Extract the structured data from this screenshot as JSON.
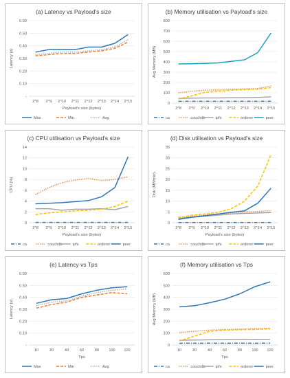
{
  "chart_data": [
    {
      "type": "line",
      "title": "(a) Latency vs Payload's size",
      "xlabel": "Payload's size (bytes)",
      "ylabel": "Latency (s)",
      "categories": [
        "2^8",
        "2^9",
        "2^10",
        "2^11",
        "2^12",
        "2^13",
        "2^14",
        "2^15"
      ],
      "ylim": [
        0,
        0.6
      ],
      "yticks": [
        "-",
        "0.10",
        "0.20",
        "0.30",
        "0.40",
        "0.50",
        "0.60"
      ],
      "grid": true,
      "legend": "bottom",
      "series": [
        {
          "name": "Max",
          "values": [
            0.35,
            0.37,
            0.37,
            0.37,
            0.39,
            0.39,
            0.42,
            0.49
          ],
          "color": "#2e75b6",
          "dash": "solid"
        },
        {
          "name": "Min",
          "values": [
            0.32,
            0.33,
            0.34,
            0.34,
            0.35,
            0.36,
            0.38,
            0.43
          ],
          "color": "#ed7d31",
          "dash": "dash"
        },
        {
          "name": "Avg",
          "values": [
            0.33,
            0.34,
            0.35,
            0.35,
            0.36,
            0.37,
            0.39,
            0.45
          ],
          "color": "#a5a5a5",
          "dash": "dot"
        }
      ]
    },
    {
      "type": "line",
      "title": "(b) Memory utilisation vs Payload's size",
      "xlabel": "",
      "ylabel": "Avg Memory (MB)",
      "categories": [
        "2^8",
        "2^9",
        "2^10",
        "2^11",
        "2^12",
        "2^13",
        "2^14",
        "2^15"
      ],
      "ylim": [
        0,
        800
      ],
      "yticks": [
        "0",
        "100",
        "200",
        "300",
        "400",
        "500",
        "600",
        "700",
        "800"
      ],
      "grid": true,
      "legend": "bottom",
      "series": [
        {
          "name": "ca",
          "values": [
            17,
            17,
            17,
            17,
            17,
            17,
            17,
            17
          ],
          "color": "#2e75b6",
          "dash": "dashdot"
        },
        {
          "name": "couchdb",
          "values": [
            100,
            115,
            125,
            128,
            133,
            138,
            142,
            165
          ],
          "color": "#ed7d31",
          "dash": "dot"
        },
        {
          "name": "ipfs",
          "values": [
            45,
            48,
            50,
            50,
            52,
            52,
            55,
            60
          ],
          "color": "#a5a5a5",
          "dash": "solid"
        },
        {
          "name": "orderer",
          "values": [
            40,
            70,
            105,
            115,
            125,
            130,
            135,
            150
          ],
          "color": "#ffc000",
          "dash": "dash"
        },
        {
          "name": "peer",
          "values": [
            380,
            382,
            385,
            390,
            405,
            420,
            490,
            680
          ],
          "color": "#17a2b8",
          "dash": "solid"
        }
      ]
    },
    {
      "type": "line",
      "title": "(c) CPU utilisation vs Payload's size",
      "xlabel": "Payload's size (bytes)",
      "ylabel": "CPU (%)",
      "categories": [
        "2^8",
        "2^9",
        "2^10",
        "2^11",
        "2^12",
        "2^13",
        "2^14",
        "2^15"
      ],
      "ylim": [
        0,
        14
      ],
      "yticks": [
        "0",
        "2",
        "4",
        "6",
        "8",
        "10",
        "12",
        "14"
      ],
      "grid": true,
      "legend": "bottom",
      "series": [
        {
          "name": "ca",
          "values": [
            0.05,
            0.05,
            0.05,
            0.05,
            0.05,
            0.05,
            0.05,
            0.05
          ],
          "color": "#2e75b6",
          "dash": "dashdot"
        },
        {
          "name": "couchdb",
          "values": [
            5.2,
            6.5,
            7.4,
            7.9,
            8.2,
            7.8,
            8.0,
            8.5
          ],
          "color": "#ed7d31",
          "dash": "dot"
        },
        {
          "name": "ipfs",
          "values": [
            2.6,
            2.6,
            2.3,
            2.5,
            2.5,
            2.6,
            2.4,
            3.0
          ],
          "color": "#a5a5a5",
          "dash": "solid"
        },
        {
          "name": "orderer",
          "values": [
            1.5,
            1.8,
            2.0,
            2.2,
            2.3,
            2.5,
            3.0,
            4.0
          ],
          "color": "#ffc000",
          "dash": "dash"
        },
        {
          "name": "peer",
          "values": [
            3.5,
            3.6,
            3.7,
            3.9,
            4.1,
            4.8,
            6.5,
            12.2
          ],
          "color": "#2e75b6",
          "dash": "solid"
        }
      ]
    },
    {
      "type": "line",
      "title": "(d) Disk utilisation vs Payload's size",
      "xlabel": "Payload's size (bytes)",
      "ylabel": "Disk (MB/min)",
      "categories": [
        "2^8",
        "2^9",
        "2^10",
        "2^11",
        "2^12",
        "2^13",
        "2^14",
        "2^15"
      ],
      "ylim": [
        0,
        35
      ],
      "yticks": [
        "0",
        "5",
        "10",
        "15",
        "20",
        "25",
        "30",
        "35"
      ],
      "grid": true,
      "legend": "bottom",
      "series": [
        {
          "name": "ca",
          "values": [
            0.1,
            0.1,
            0.1,
            0.1,
            0.1,
            0.1,
            0.1,
            0.1
          ],
          "color": "#2e75b6",
          "dash": "dashdot"
        },
        {
          "name": "couchdb",
          "values": [
            2.5,
            3.0,
            3.5,
            4.0,
            4.5,
            5.0,
            5.2,
            5.6
          ],
          "color": "#ed7d31",
          "dash": "dot"
        },
        {
          "name": "ipfs",
          "values": [
            2.0,
            2.5,
            3.0,
            3.5,
            4.0,
            4.3,
            4.5,
            4.7
          ],
          "color": "#a5a5a5",
          "dash": "solid"
        },
        {
          "name": "orderer",
          "values": [
            2.2,
            3.5,
            4.0,
            4.8,
            6.5,
            10.0,
            17.0,
            31.5
          ],
          "color": "#ffc000",
          "dash": "dash"
        },
        {
          "name": "peer",
          "values": [
            1.5,
            2.5,
            3.2,
            4.0,
            4.8,
            5.5,
            9.0,
            16.0
          ],
          "color": "#2e75b6",
          "dash": "solid"
        }
      ]
    },
    {
      "type": "line",
      "title": "(e) Latency vs Tps",
      "xlabel": "Tps",
      "ylabel": "Latency (s)",
      "categories": [
        "10",
        "20",
        "40",
        "60",
        "80",
        "100",
        "120"
      ],
      "ylim": [
        0,
        0.6
      ],
      "yticks": [
        "-",
        "0.10",
        "0.20",
        "0.30",
        "0.40",
        "0.50",
        "0.60"
      ],
      "grid": true,
      "legend": "bottom",
      "series": [
        {
          "name": "Max",
          "values": [
            0.35,
            0.38,
            0.39,
            0.43,
            0.46,
            0.48,
            0.49
          ],
          "color": "#2e75b6",
          "dash": "solid"
        },
        {
          "name": "Min",
          "values": [
            0.31,
            0.34,
            0.36,
            0.4,
            0.42,
            0.44,
            0.43
          ],
          "color": "#ed7d31",
          "dash": "dash"
        },
        {
          "name": "Avg",
          "values": [
            0.33,
            0.36,
            0.37,
            0.41,
            0.44,
            0.46,
            0.47
          ],
          "color": "#a5a5a5",
          "dash": "dot"
        }
      ]
    },
    {
      "type": "line",
      "title": "(f) Memory utilisation vs Tps",
      "xlabel": "Tps",
      "ylabel": "Avg Memory (MB)",
      "categories": [
        "10",
        "20",
        "40",
        "60",
        "80",
        "100",
        "120"
      ],
      "ylim": [
        0,
        600
      ],
      "yticks": [
        "0",
        "100",
        "200",
        "300",
        "400",
        "500",
        "600"
      ],
      "grid": true,
      "legend": "bottom",
      "series": [
        {
          "name": "ca",
          "values": [
            15,
            15,
            15,
            15,
            15,
            15,
            15
          ],
          "color": "#2e75b6",
          "dash": "dashdot"
        },
        {
          "name": "couchdb",
          "values": [
            105,
            115,
            125,
            130,
            133,
            138,
            140
          ],
          "color": "#ed7d31",
          "dash": "dot"
        },
        {
          "name": "ipfs",
          "values": [
            40,
            42,
            44,
            45,
            46,
            47,
            48
          ],
          "color": "#a5a5a5",
          "dash": "solid"
        },
        {
          "name": "orderer",
          "values": [
            35,
            75,
            115,
            125,
            128,
            130,
            135
          ],
          "color": "#ffc000",
          "dash": "dash"
        },
        {
          "name": "peer",
          "values": [
            320,
            330,
            355,
            385,
            430,
            490,
            530
          ],
          "color": "#2e75b6",
          "dash": "solid"
        }
      ]
    }
  ]
}
